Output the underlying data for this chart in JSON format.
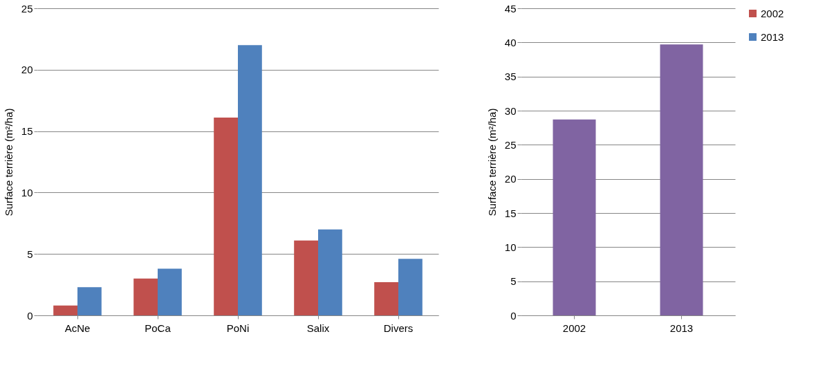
{
  "chart_data": [
    {
      "type": "bar",
      "categories": [
        "AcNe",
        "PoCa",
        "PoNi",
        "Salix",
        "Divers"
      ],
      "ylabel": "Surface terrière (m²/ha)",
      "ylim": [
        0,
        25
      ],
      "yticks": [
        0,
        5,
        10,
        15,
        20,
        25
      ],
      "grid": "y",
      "legend": "right",
      "series": [
        {
          "name": "2002",
          "color": "#c0504d",
          "values": [
            0.8,
            3.0,
            16.1,
            6.1,
            2.7
          ]
        },
        {
          "name": "2013",
          "color": "#4f81bd",
          "values": [
            2.3,
            3.8,
            22.0,
            7.0,
            4.6
          ]
        }
      ]
    },
    {
      "type": "bar",
      "categories": [
        "2002",
        "2013"
      ],
      "ylabel": "Surface terrière (m²/ha)",
      "ylim": [
        0,
        45
      ],
      "yticks": [
        0,
        5,
        10,
        15,
        20,
        25,
        30,
        35,
        40,
        45
      ],
      "grid": "y",
      "color": "#8064a2",
      "values": [
        28.7,
        39.7
      ]
    }
  ]
}
